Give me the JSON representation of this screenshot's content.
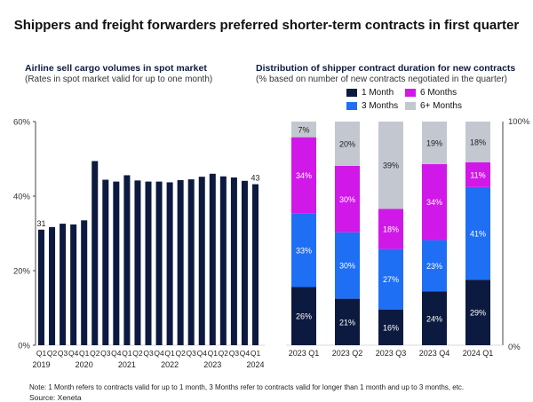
{
  "title": "Shippers and freight forwarders preferred shorter-term contracts in first quarter",
  "note": "Note: 1 Month refers to contracts valid for up to 1 month, 3 Months refer to contracts valid for longer than 1 month and up to 3 months, etc.",
  "source": "Source: Xeneta",
  "colors": {
    "navy": "#0c1a3f",
    "blue": "#1f6ff5",
    "magenta": "#d018e8",
    "gray": "#c3c7cf"
  },
  "chart_data": [
    {
      "type": "bar",
      "title": "Airline sell cargo volumes in spot market",
      "subtitle": "(Rates in spot market valid for up to one month)",
      "xlabel": "",
      "ylabel": "",
      "ylim": [
        0,
        60
      ],
      "yticks": [
        "0%",
        "20%",
        "40%",
        "60%"
      ],
      "ytick_values": [
        0,
        20,
        40,
        60
      ],
      "categories": [
        "Q1",
        "Q2",
        "Q3",
        "Q4",
        "Q1",
        "Q2",
        "Q3",
        "Q4",
        "Q1",
        "Q2",
        "Q3",
        "Q4",
        "Q1",
        "Q2",
        "Q3",
        "Q4",
        "Q1",
        "Q2",
        "Q3",
        "Q4",
        "Q1"
      ],
      "year_labels": [
        {
          "label": "2019",
          "index": 0
        },
        {
          "label": "2020",
          "index": 4
        },
        {
          "label": "2021",
          "index": 8
        },
        {
          "label": "2022",
          "index": 12
        },
        {
          "label": "2023",
          "index": 16
        },
        {
          "label": "2024",
          "index": 20
        }
      ],
      "values": [
        31,
        31.7,
        32.6,
        32.4,
        33.5,
        49.4,
        44.4,
        43.9,
        45.6,
        44.2,
        43.9,
        43.9,
        43.7,
        44.3,
        44.5,
        45.2,
        46.0,
        45.3,
        45.0,
        44.1,
        43.2
      ],
      "data_labels": [
        {
          "index": 0,
          "text": "31"
        },
        {
          "index": 20,
          "text": "43"
        }
      ],
      "grid": false
    },
    {
      "type": "bar",
      "stacked": true,
      "title": "Distribution of shipper contract duration for new contracts",
      "subtitle": "(% based on number of new contracts negotiated in the quarter)",
      "ylim": [
        0,
        100
      ],
      "yticks": [
        "0%",
        "100%"
      ],
      "categories": [
        "2023 Q1",
        "2023 Q2",
        "2023 Q3",
        "2023 Q4",
        "2024 Q1"
      ],
      "legend_position": "top",
      "series": [
        {
          "name": "1 Month",
          "color": "#0c1a3f",
          "label_color": "#ffffff",
          "values": [
            26,
            21,
            16,
            24,
            29
          ]
        },
        {
          "name": "3 Months",
          "color": "#1f6ff5",
          "label_color": "#ffffff",
          "values": [
            33,
            30,
            27,
            23,
            41
          ]
        },
        {
          "name": "6 Months",
          "color": "#d018e8",
          "label_color": "#ffffff",
          "values": [
            34,
            30,
            18,
            34,
            11
          ]
        },
        {
          "name": "6+ Months",
          "color": "#c3c7cf",
          "label_color": "#222222",
          "values": [
            7,
            20,
            39,
            19,
            18
          ]
        }
      ],
      "legend_order": [
        0,
        2,
        1,
        3
      ],
      "grid": false
    }
  ]
}
